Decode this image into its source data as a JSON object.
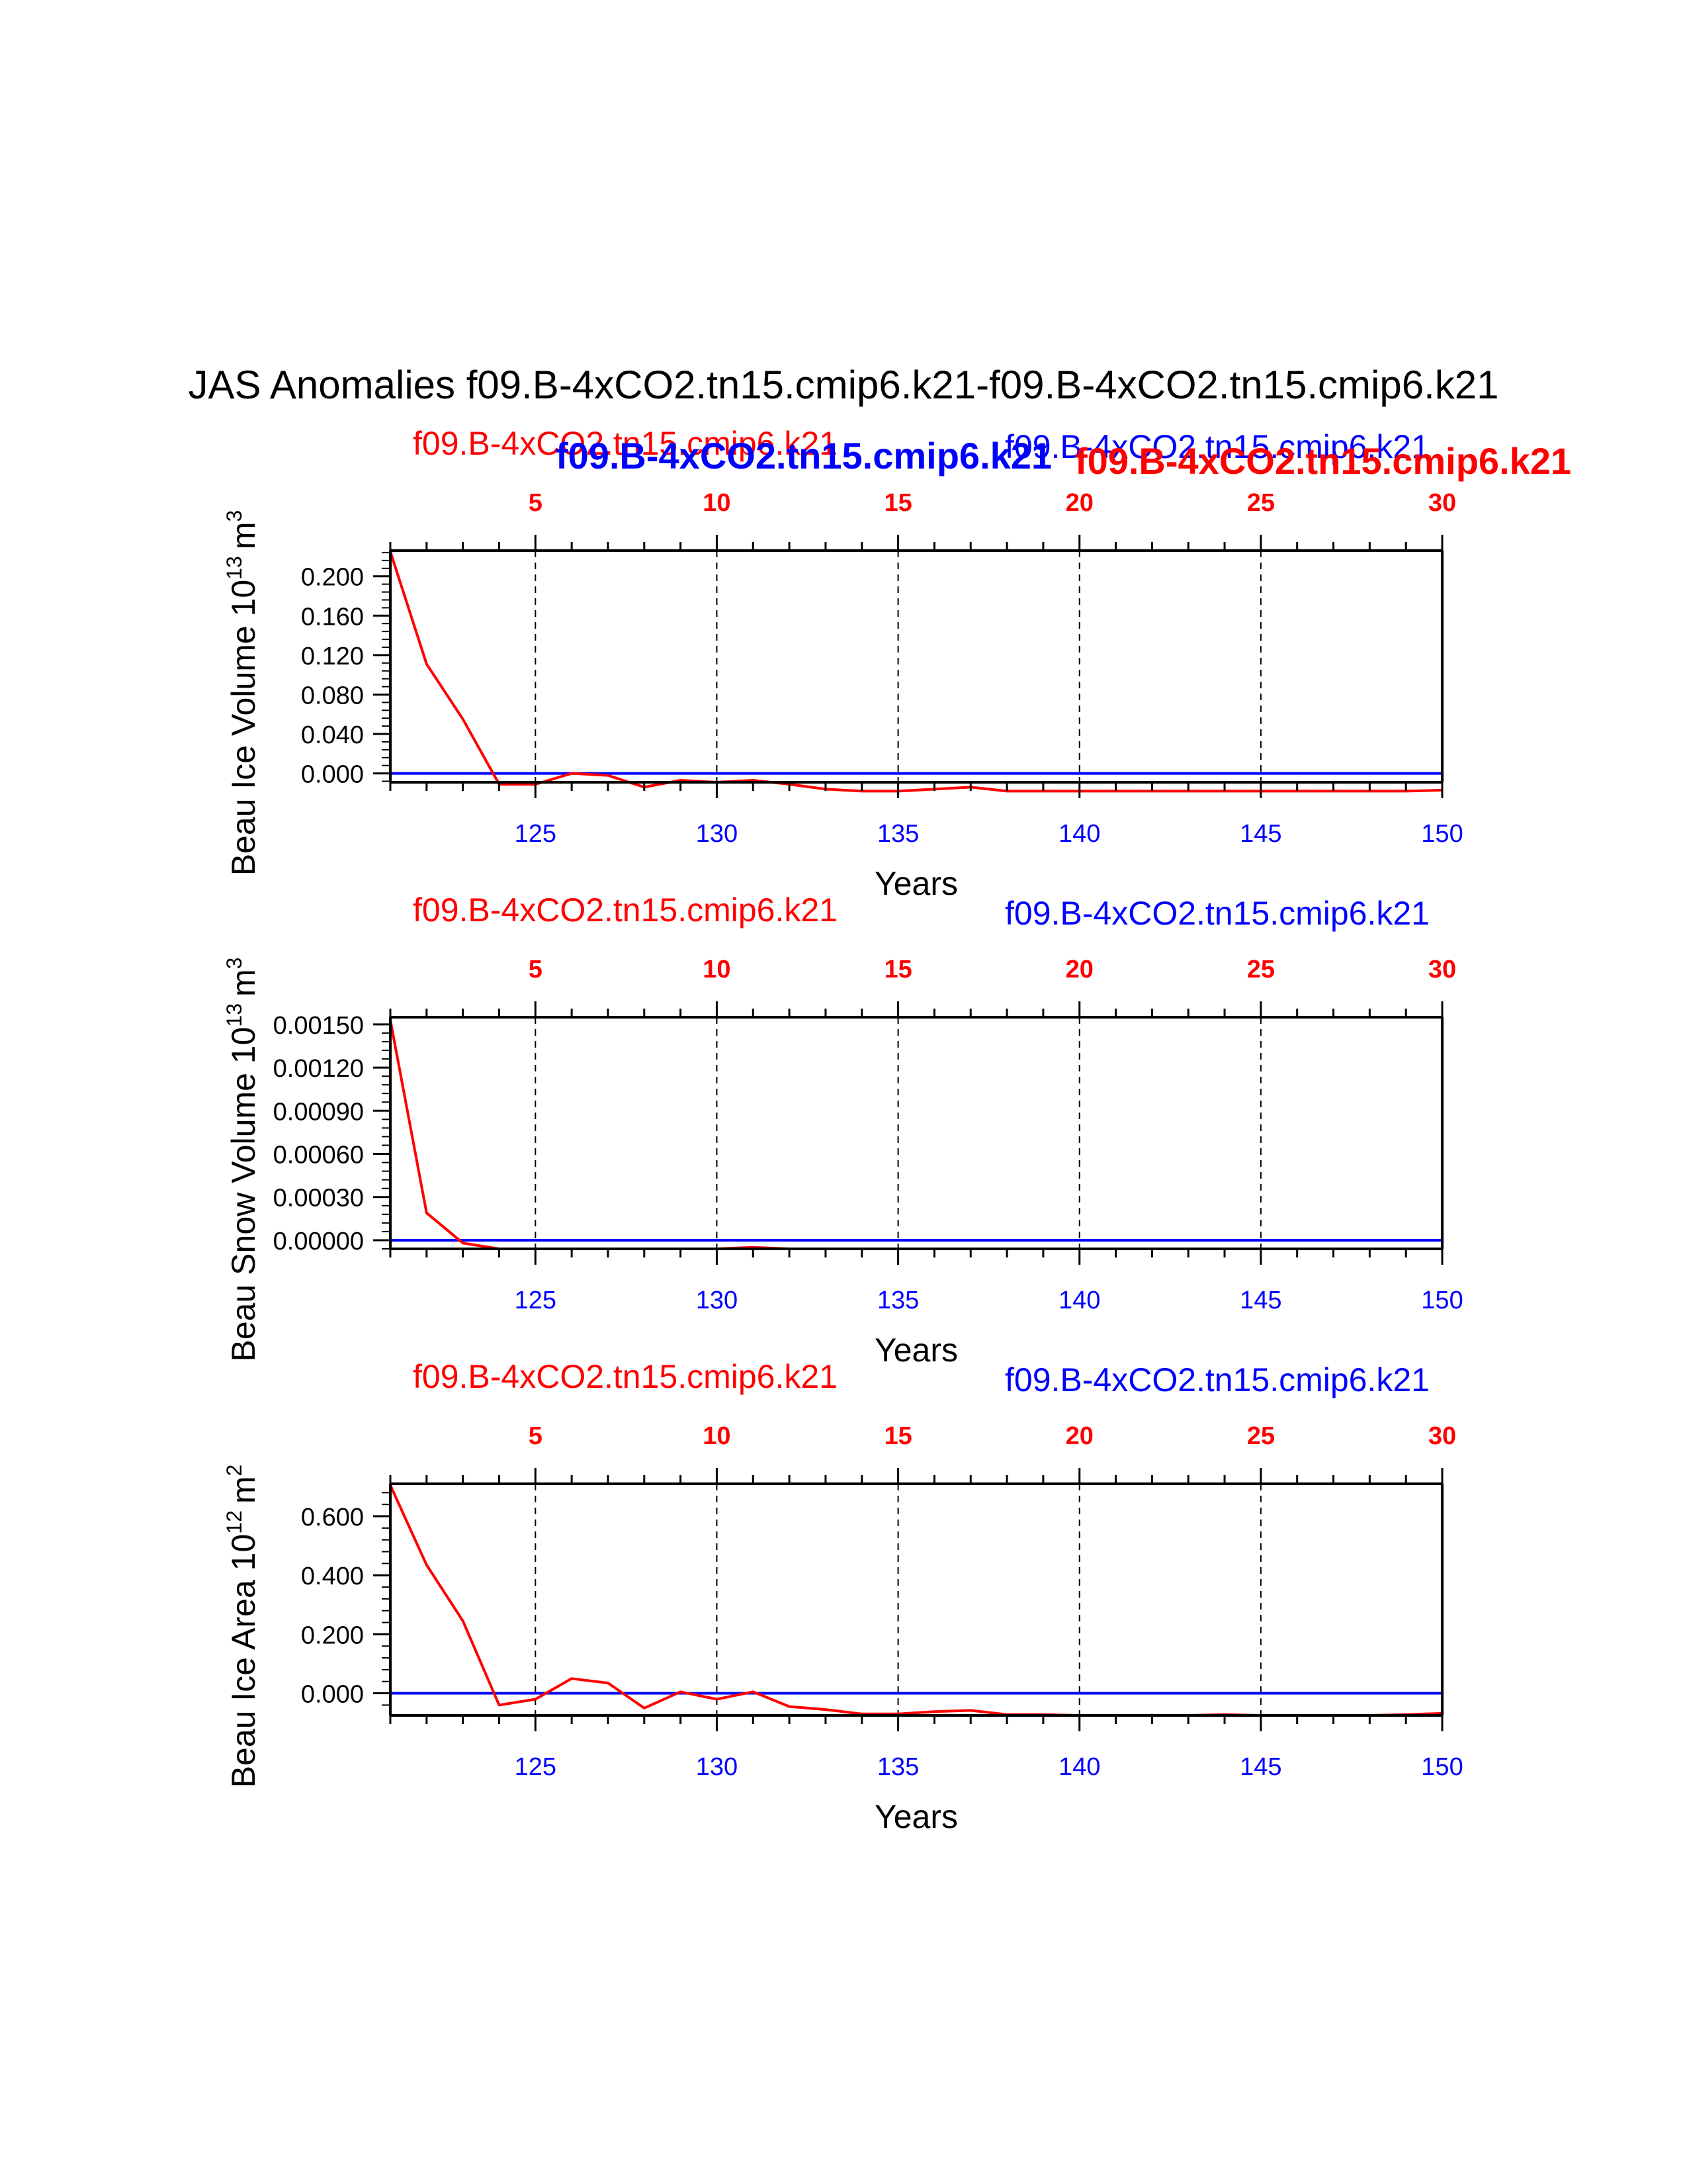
{
  "title": "JAS Anomalies f09.B-4xCO2.tn15.cmip6.k21-f09.B-4xCO2.tn15.cmip6.k21",
  "overlay_labels": {
    "blue_bold": "f09.B-4xCO2.tn15.cmip6.k21",
    "red_bold": "f09.B-4xCO2.tn15.cmip6.k21"
  },
  "colors": {
    "case1": "#ff0000",
    "case2": "#0000ff",
    "axis": "#000000"
  },
  "chart_data": [
    {
      "type": "line",
      "ylabel": "Beau Ice Volume 10",
      "yexp": "13",
      "yunit": "m",
      "yunitexp": "3",
      "xlabel": "Years",
      "legend_left": "f09.B-4xCO2.tn15.cmip6.k21",
      "legend_right": "f09.B-4xCO2.tn15.cmip6.k21",
      "xlim": [
        121,
        150
      ],
      "ylim": [
        -0.009,
        0.226
      ],
      "yticks": [
        0.0,
        0.04,
        0.08,
        0.12,
        0.16,
        0.2
      ],
      "yticklabels": [
        "0.000",
        "0.040",
        "0.080",
        "0.120",
        "0.160",
        "0.200"
      ],
      "xticks": [
        125,
        130,
        135,
        140,
        145,
        150
      ],
      "xticklabels": [
        "125",
        "130",
        "135",
        "140",
        "145",
        "150"
      ],
      "top_ticks": [
        5,
        10,
        15,
        20,
        25,
        30
      ],
      "top_ticklabels": [
        "5",
        "10",
        "15",
        "20",
        "25",
        "30"
      ],
      "series": [
        {
          "name": "f09.B-4xCO2.tn15.cmip6.k21",
          "color": "#ff0000",
          "x": [
            121,
            122,
            123,
            124,
            125,
            126,
            127,
            128,
            129,
            130,
            131,
            132,
            133,
            134,
            135,
            136,
            137,
            138,
            139,
            140,
            141,
            142,
            143,
            144,
            145,
            146,
            147,
            148,
            149,
            150
          ],
          "values": [
            0.225,
            0.111,
            0.055,
            -0.011,
            -0.011,
            0.0,
            -0.002,
            -0.014,
            -0.007,
            -0.009,
            -0.007,
            -0.011,
            -0.016,
            -0.018,
            -0.018,
            -0.016,
            -0.014,
            -0.018,
            -0.018,
            -0.018,
            -0.018,
            -0.018,
            -0.018,
            -0.018,
            -0.018,
            -0.018,
            -0.018,
            -0.018,
            -0.018,
            -0.017
          ]
        },
        {
          "name": "f09.B-4xCO2.tn15.cmip6.k21",
          "color": "#0000ff",
          "x": [
            121,
            150
          ],
          "values": [
            0.0,
            0.0
          ]
        }
      ]
    },
    {
      "type": "line",
      "ylabel": "Beau Snow Volume 10",
      "yexp": "13",
      "yunit": "m",
      "yunitexp": "3",
      "xlabel": "Years",
      "legend_left": "f09.B-4xCO2.tn15.cmip6.k21",
      "legend_right": "f09.B-4xCO2.tn15.cmip6.k21",
      "xlim": [
        121,
        150
      ],
      "ylim": [
        -6e-05,
        0.00155
      ],
      "yticks": [
        0.0,
        0.0003,
        0.0006,
        0.0009,
        0.0012,
        0.0015
      ],
      "yticklabels": [
        "0.00000",
        "0.00030",
        "0.00060",
        "0.00090",
        "0.00120",
        "0.00150"
      ],
      "xticks": [
        125,
        130,
        135,
        140,
        145,
        150
      ],
      "xticklabels": [
        "125",
        "130",
        "135",
        "140",
        "145",
        "150"
      ],
      "top_ticks": [
        5,
        10,
        15,
        20,
        25,
        30
      ],
      "top_ticklabels": [
        "5",
        "10",
        "15",
        "20",
        "25",
        "30"
      ],
      "series": [
        {
          "name": "f09.B-4xCO2.tn15.cmip6.k21",
          "color": "#ff0000",
          "x": [
            121,
            122,
            123,
            124,
            125,
            126,
            127,
            128,
            129,
            130,
            131,
            132,
            133,
            134,
            135,
            136,
            137,
            138,
            139,
            140,
            141,
            142,
            143,
            144,
            145,
            146,
            147,
            148,
            149,
            150
          ],
          "values": [
            0.00153,
            0.00019,
            -2e-05,
            -6e-05,
            -6e-05,
            -6e-05,
            -6e-05,
            -6e-05,
            -6e-05,
            -6e-05,
            -5e-05,
            -6e-05,
            -6e-05,
            -6e-05,
            -6e-05,
            -6e-05,
            -6e-05,
            -6e-05,
            -6e-05,
            -6e-05,
            -6e-05,
            -6e-05,
            -6e-05,
            -6e-05,
            -6e-05,
            -6e-05,
            -6e-05,
            -6e-05,
            -6e-05,
            -6e-05
          ]
        },
        {
          "name": "f09.B-4xCO2.tn15.cmip6.k21",
          "color": "#0000ff",
          "x": [
            121,
            150
          ],
          "values": [
            0.0,
            0.0
          ]
        }
      ]
    },
    {
      "type": "line",
      "ylabel": "Beau Ice Area 10",
      "yexp": "12",
      "yunit": "m",
      "yunitexp": "2",
      "xlabel": "Years",
      "legend_left": "f09.B-4xCO2.tn15.cmip6.k21",
      "legend_right": "f09.B-4xCO2.tn15.cmip6.k21",
      "xlim": [
        121,
        150
      ],
      "ylim": [
        -0.075,
        0.71
      ],
      "yticks": [
        0.0,
        0.2,
        0.4,
        0.6
      ],
      "yticklabels": [
        "0.000",
        "0.200",
        "0.400",
        "0.600"
      ],
      "xticks": [
        125,
        130,
        135,
        140,
        145,
        150
      ],
      "xticklabels": [
        "125",
        "130",
        "135",
        "140",
        "145",
        "150"
      ],
      "top_ticks": [
        5,
        10,
        15,
        20,
        25,
        30
      ],
      "top_ticklabels": [
        "5",
        "10",
        "15",
        "20",
        "25",
        "30"
      ],
      "series": [
        {
          "name": "f09.B-4xCO2.tn15.cmip6.k21",
          "color": "#ff0000",
          "x": [
            121,
            122,
            123,
            124,
            125,
            126,
            127,
            128,
            129,
            130,
            131,
            132,
            133,
            134,
            135,
            136,
            137,
            138,
            139,
            140,
            141,
            142,
            143,
            144,
            145,
            146,
            147,
            148,
            149,
            150
          ],
          "values": [
            0.705,
            0.435,
            0.245,
            -0.04,
            -0.02,
            0.05,
            0.035,
            -0.05,
            0.005,
            -0.02,
            0.005,
            -0.045,
            -0.055,
            -0.07,
            -0.07,
            -0.062,
            -0.058,
            -0.072,
            -0.072,
            -0.075,
            -0.075,
            -0.075,
            -0.075,
            -0.072,
            -0.075,
            -0.075,
            -0.075,
            -0.075,
            -0.072,
            -0.068
          ]
        },
        {
          "name": "f09.B-4xCO2.tn15.cmip6.k21",
          "color": "#0000ff",
          "x": [
            121,
            150
          ],
          "values": [
            0.0,
            0.0
          ]
        }
      ]
    }
  ]
}
